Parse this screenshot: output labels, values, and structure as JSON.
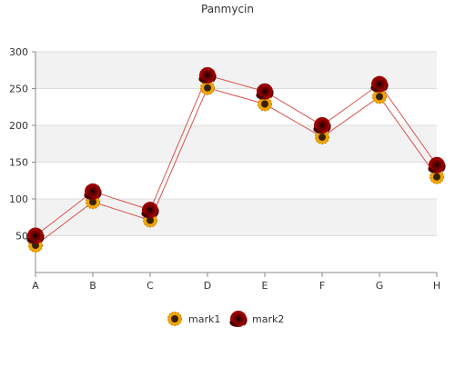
{
  "chart_data": {
    "type": "line",
    "title": "Panmycin",
    "categories": [
      "A",
      "B",
      "C",
      "D",
      "E",
      "F",
      "G",
      "H"
    ],
    "series": [
      {
        "name": "mark1",
        "values": [
          37,
          96,
          71,
          251,
          229,
          184,
          239,
          130
        ],
        "marker": "sunflower-icon"
      },
      {
        "name": "mark2",
        "values": [
          50,
          110,
          85,
          268,
          246,
          200,
          256,
          146
        ],
        "marker": "rose-icon"
      }
    ],
    "ylim": [
      0,
      300
    ],
    "yticks": [
      "50",
      "100",
      "150",
      "200",
      "250",
      "300"
    ],
    "ytick_values": [
      50,
      100,
      150,
      200,
      250,
      300
    ],
    "grid": true,
    "legend_position": "bottom-center"
  },
  "colors": {
    "line": "#d9534f",
    "band": "#f2f2f2",
    "grid": "#dddddd",
    "axis": "#888888",
    "sunflower_petal": "#f0a500",
    "sunflower_center": "#3a2000",
    "rose": "#9b0000",
    "rose_dark": "#4a0000"
  }
}
